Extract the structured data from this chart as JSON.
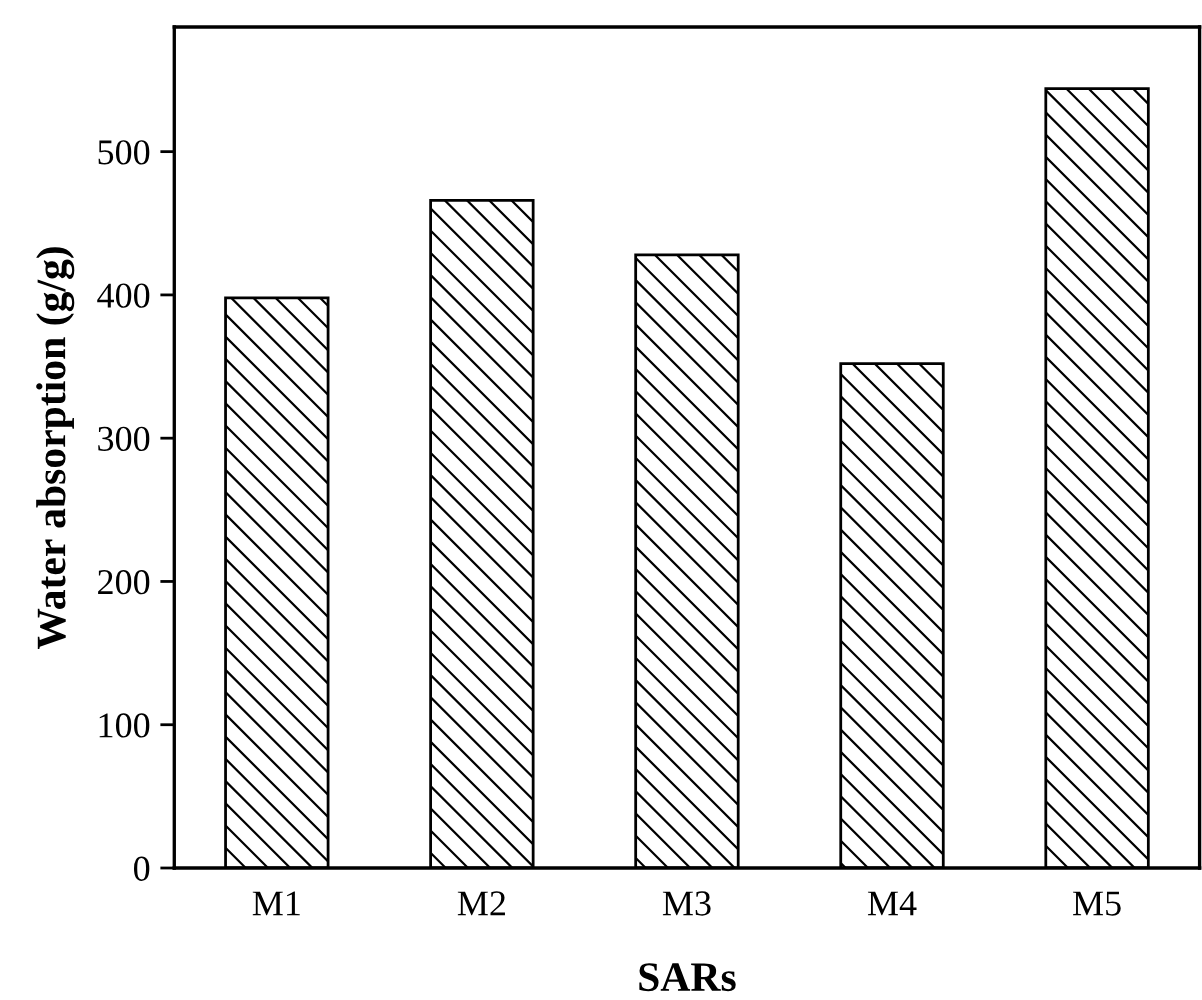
{
  "chart_data": {
    "type": "bar",
    "xlabel": "SARs",
    "ylabel": "Water absorption (g/g)",
    "categories": [
      "M1",
      "M2",
      "M3",
      "M4",
      "M5"
    ],
    "values": [
      398,
      466,
      428,
      352,
      544
    ],
    "color": "#000000",
    "ylim": [
      0,
      587
    ],
    "yticks": [
      0,
      100,
      200,
      300,
      400,
      500
    ],
    "grid": false,
    "legend": false
  }
}
